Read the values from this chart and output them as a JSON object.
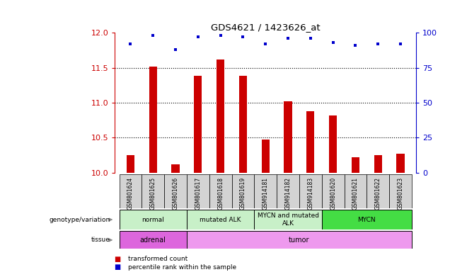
{
  "title": "GDS4621 / 1423626_at",
  "samples": [
    "GSM801624",
    "GSM801625",
    "GSM801626",
    "GSM801617",
    "GSM801618",
    "GSM801619",
    "GSM914181",
    "GSM914182",
    "GSM914183",
    "GSM801620",
    "GSM801621",
    "GSM801622",
    "GSM801623"
  ],
  "bar_values": [
    10.25,
    11.52,
    10.12,
    11.38,
    11.62,
    11.38,
    10.47,
    11.02,
    10.88,
    10.82,
    10.22,
    10.25,
    10.27
  ],
  "dot_values": [
    92,
    98,
    88,
    97,
    98,
    97,
    92,
    96,
    96,
    93,
    91,
    92,
    92
  ],
  "ylim": [
    10.0,
    12.0
  ],
  "yticks": [
    10.0,
    10.5,
    11.0,
    11.5,
    12.0
  ],
  "right_yticks": [
    0,
    25,
    50,
    75,
    100
  ],
  "right_ylim": [
    0,
    100
  ],
  "bar_color": "#cc0000",
  "dot_color": "#0000cc",
  "genotype_groups": [
    {
      "label": "normal",
      "start": 0,
      "end": 3,
      "color": "#c8f0c8"
    },
    {
      "label": "mutated ALK",
      "start": 3,
      "end": 6,
      "color": "#c8f0c8"
    },
    {
      "label": "MYCN and mutated\nALK",
      "start": 6,
      "end": 9,
      "color": "#c8f0c8"
    },
    {
      "label": "MYCN",
      "start": 9,
      "end": 13,
      "color": "#44dd44"
    }
  ],
  "tissue_groups": [
    {
      "label": "adrenal",
      "start": 0,
      "end": 3,
      "color": "#dd66dd"
    },
    {
      "label": "tumor",
      "start": 3,
      "end": 13,
      "color": "#ee99ee"
    }
  ],
  "legend_items": [
    {
      "label": "transformed count",
      "color": "#cc0000"
    },
    {
      "label": "percentile rank within the sample",
      "color": "#0000cc"
    }
  ],
  "tick_label_color": "#cc0000",
  "right_tick_color": "#0000cc",
  "grid_color": "#000000",
  "bar_width": 0.35
}
